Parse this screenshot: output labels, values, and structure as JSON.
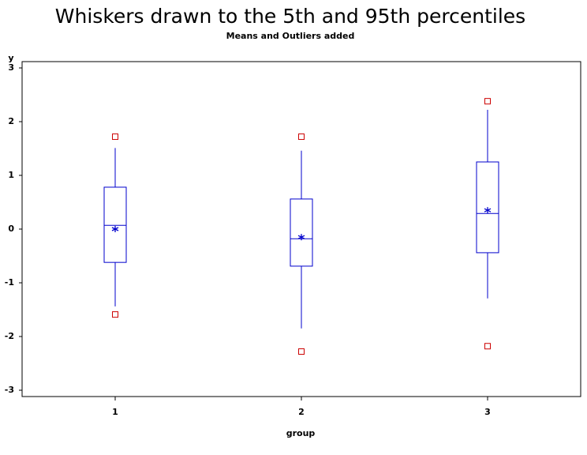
{
  "chart_data": {
    "type": "box",
    "title": "Whiskers drawn to the 5th and 95th percentiles",
    "subtitle": "Means and Outliers added",
    "x_label": "group",
    "y_label": "y",
    "categories": [
      "1",
      "2",
      "3"
    ],
    "boxes": [
      {
        "whisker_low": -1.44,
        "q1": -0.62,
        "median": 0.07,
        "q3": 0.78,
        "whisker_high": 1.51,
        "mean": 0.0,
        "outliers": [
          1.72,
          -1.59
        ]
      },
      {
        "whisker_low": -1.85,
        "q1": -0.69,
        "median": -0.18,
        "q3": 0.56,
        "whisker_high": 1.46,
        "mean": -0.15,
        "outliers": [
          1.72,
          -2.28
        ]
      },
      {
        "whisker_low": -1.29,
        "q1": -0.44,
        "median": 0.29,
        "q3": 1.25,
        "whisker_high": 2.22,
        "mean": 0.35,
        "outliers": [
          2.38,
          -2.18
        ]
      }
    ],
    "color": "#0000cc",
    "outlier_color": "#cc0000",
    "ylim": [
      -3,
      3
    ],
    "yticks": [
      -3,
      -2,
      -1,
      0,
      1,
      2,
      3
    ],
    "grid": false
  }
}
